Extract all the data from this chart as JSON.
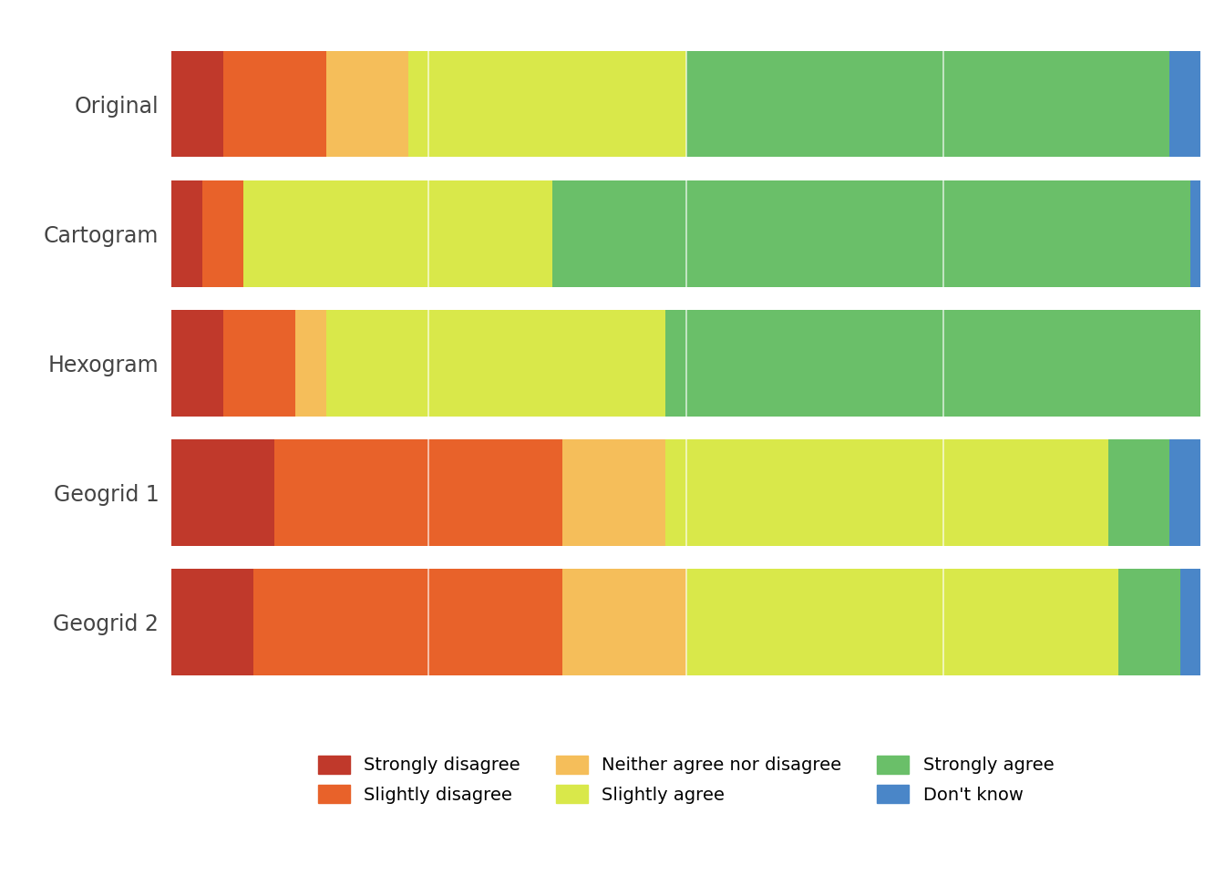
{
  "categories": [
    "Original",
    "Cartogram",
    "Hexogram",
    "Geogrid 1",
    "Geogrid 2"
  ],
  "responses": [
    "Strongly disagree",
    "Slightly disagree",
    "Neither agree nor disagree",
    "Slightly agree",
    "Strongly agree",
    "Don't know"
  ],
  "colors": [
    "#c0392b",
    "#e8622a",
    "#f5be5a",
    "#d9e84a",
    "#6abf69",
    "#4a86c8"
  ],
  "data": [
    [
      5,
      10,
      8,
      27,
      47,
      3
    ],
    [
      3,
      4,
      0,
      30,
      62,
      1
    ],
    [
      5,
      7,
      3,
      33,
      52,
      0
    ],
    [
      10,
      28,
      10,
      43,
      6,
      3
    ],
    [
      8,
      30,
      12,
      42,
      6,
      2
    ]
  ],
  "background_color": "#ffffff",
  "bar_height": 0.82,
  "figsize": [
    13.44,
    9.6
  ],
  "dpi": 100,
  "legend_fontsize": 14,
  "tick_fontsize": 17,
  "ylabel_pad": 15
}
